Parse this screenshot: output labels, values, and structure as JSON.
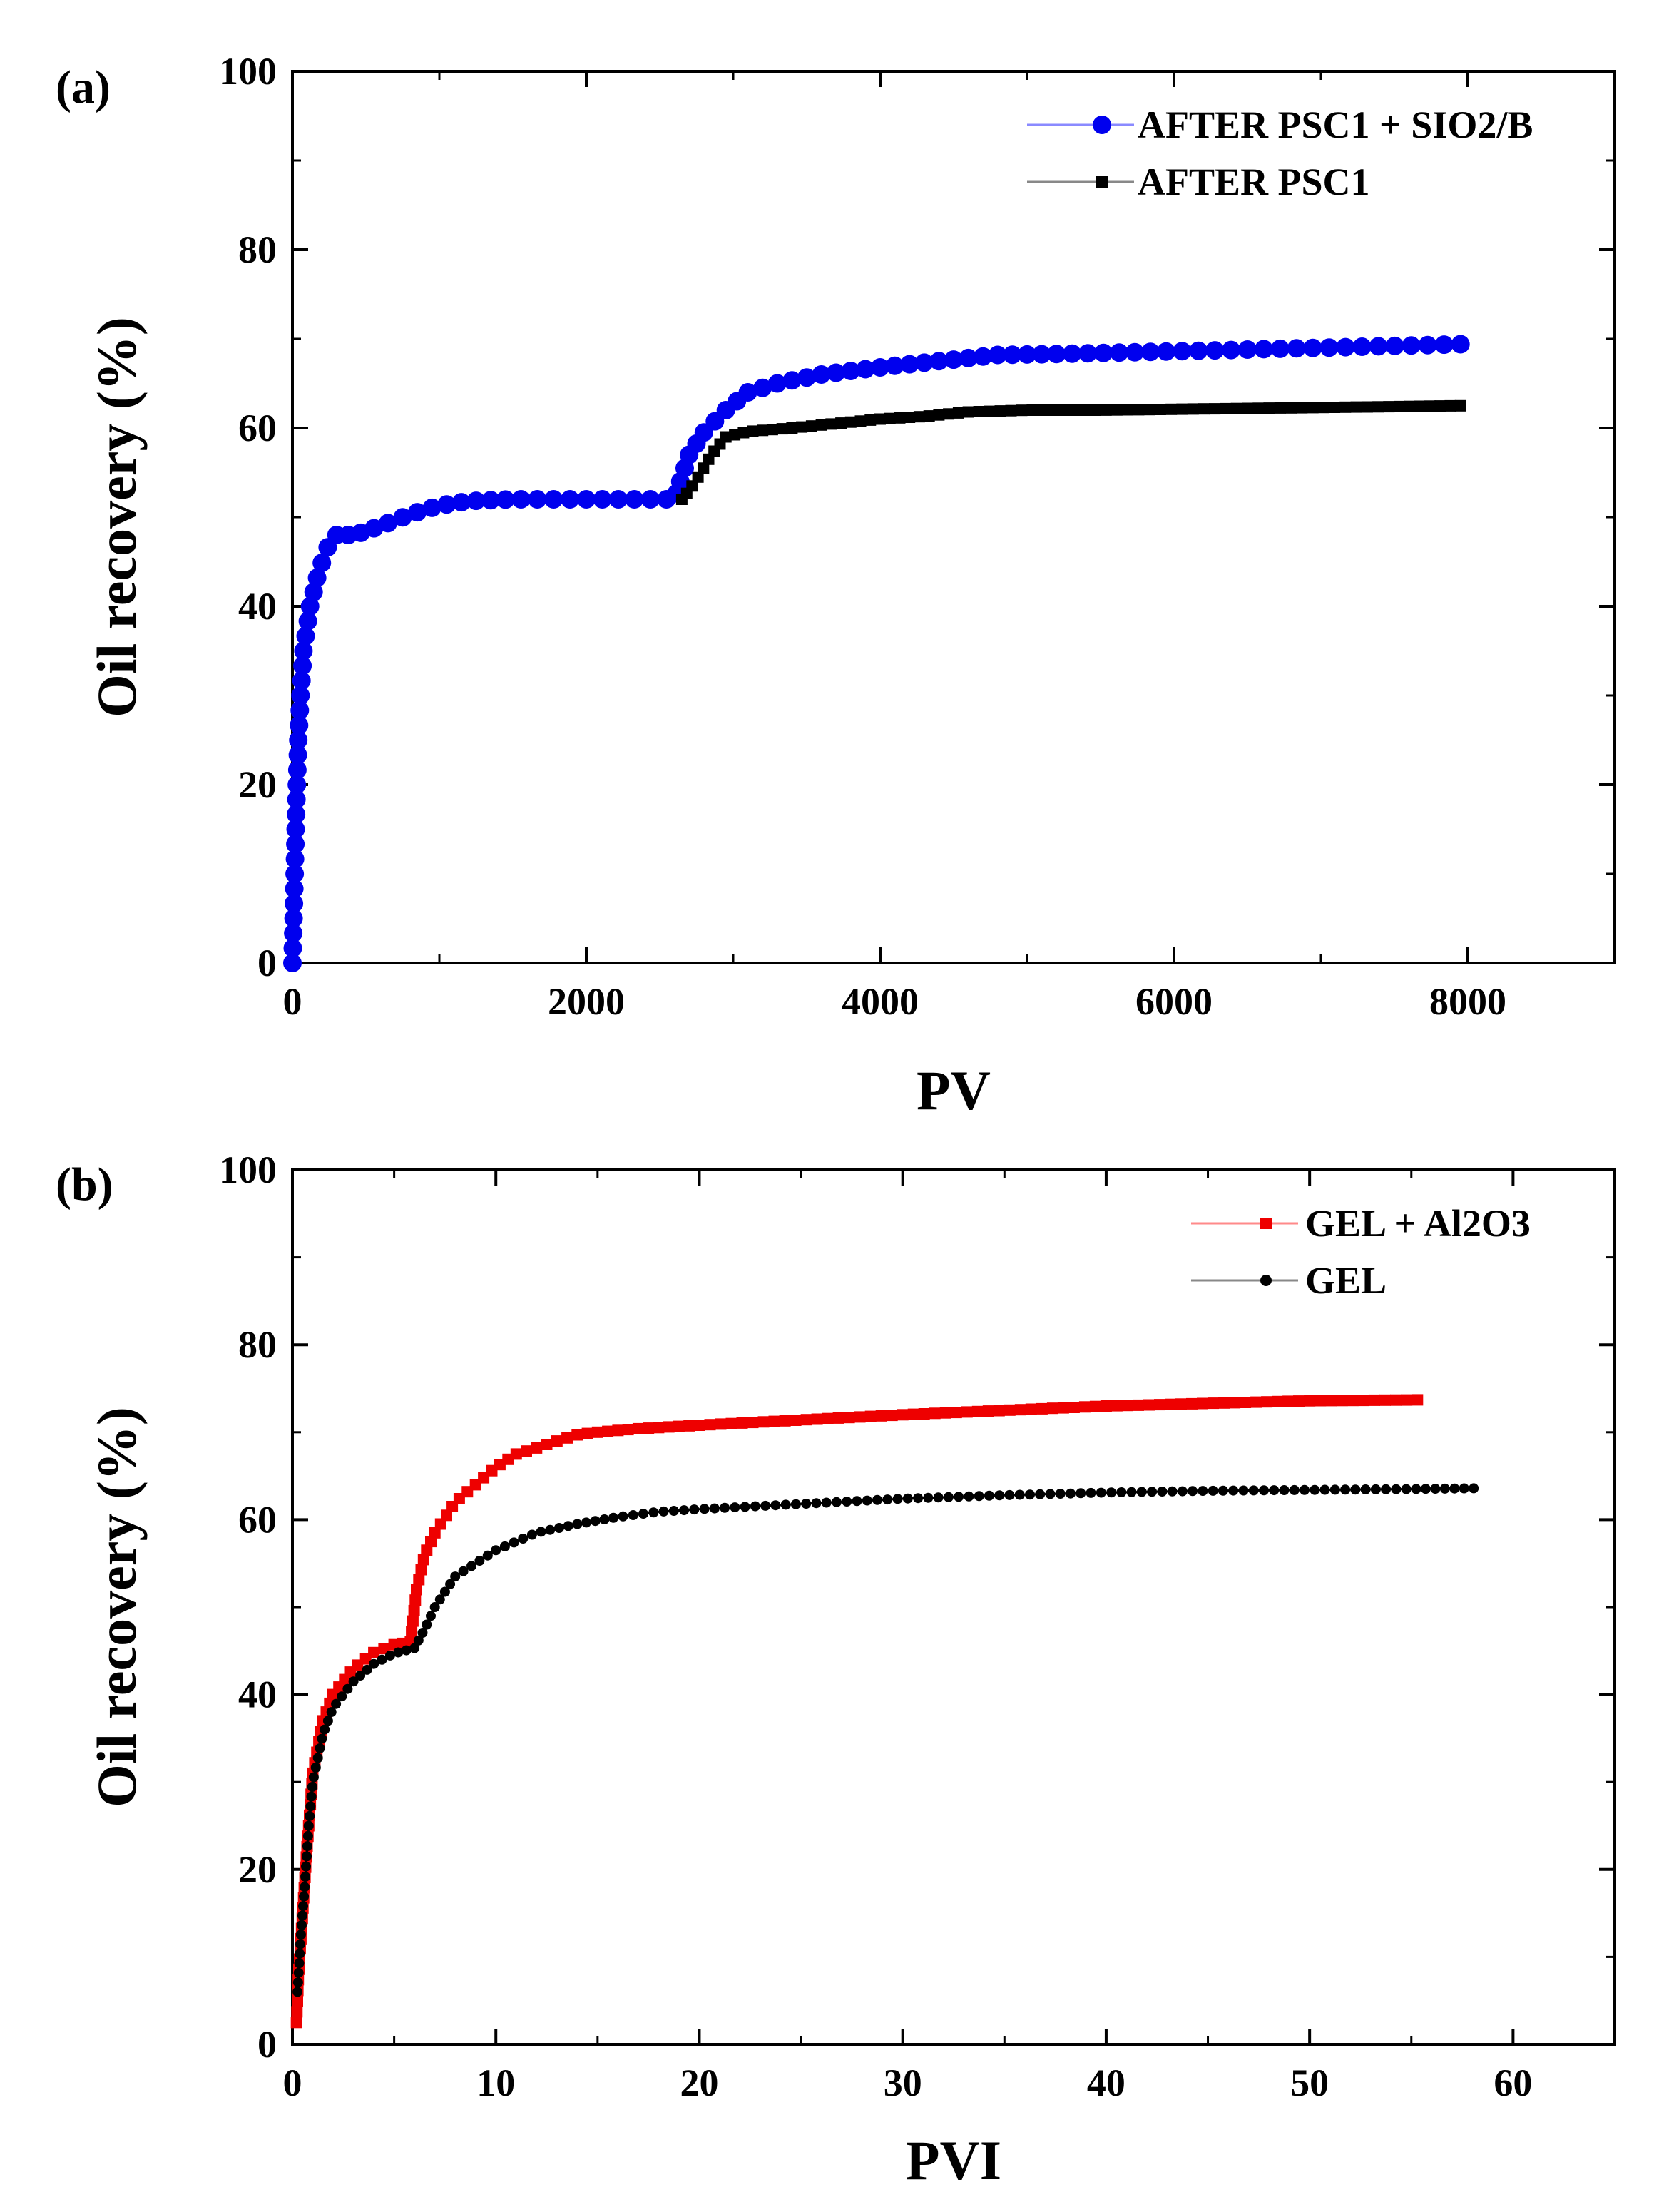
{
  "chart_data": [
    {
      "panel_label": "(a)",
      "type": "scatter",
      "xlabel": "PV",
      "ylabel": "Oil recovery (%)",
      "xlim": [
        0,
        9000
      ],
      "ylim": [
        0,
        100
      ],
      "x_ticks": [
        0,
        2000,
        4000,
        6000,
        8000
      ],
      "x_tick_labels": [
        "0",
        "2000",
        "4000",
        "6000",
        "8000"
      ],
      "x_minor_ticks": [
        1000,
        3000,
        5000,
        7000,
        9000
      ],
      "y_ticks": [
        0,
        20,
        40,
        60,
        80,
        100
      ],
      "y_tick_labels": [
        "0",
        "20",
        "40",
        "60",
        "80",
        "100"
      ],
      "y_minor_ticks": [
        10,
        30,
        50,
        70,
        90
      ],
      "grid": false,
      "legend_position": "top-right",
      "series": [
        {
          "name": "AFTER PSC1 + SIO2/B",
          "color": "#0000ee",
          "marker": "circle",
          "points": [
            [
              0,
              0
            ],
            [
              8,
              5
            ],
            [
              15,
              10
            ],
            [
              22,
              15
            ],
            [
              30,
              20
            ],
            [
              40,
              25
            ],
            [
              55,
              30
            ],
            [
              75,
              35
            ],
            [
              120,
              40
            ],
            [
              180,
              44
            ],
            [
              260,
              47.5
            ],
            [
              300,
              48
            ],
            [
              420,
              48
            ],
            [
              600,
              49
            ],
            [
              800,
              50.3
            ],
            [
              1000,
              51.3
            ],
            [
              1200,
              51.8
            ],
            [
              1500,
              52
            ],
            [
              2000,
              52
            ],
            [
              2600,
              52
            ],
            [
              2640,
              54
            ],
            [
              2700,
              57
            ],
            [
              2800,
              59.5
            ],
            [
              2950,
              62
            ],
            [
              3100,
              64
            ],
            [
              3300,
              65
            ],
            [
              3600,
              66
            ],
            [
              4000,
              66.8
            ],
            [
              4400,
              67.5
            ],
            [
              4800,
              68.2
            ],
            [
              5200,
              68.3
            ],
            [
              6000,
              68.6
            ],
            [
              7000,
              69
            ],
            [
              7950,
              69.4
            ]
          ]
        },
        {
          "name": "AFTER PSC1",
          "color": "#000000",
          "marker": "square",
          "points": [
            [
              2650,
              52
            ],
            [
              2700,
              53
            ],
            [
              2780,
              55
            ],
            [
              2850,
              57
            ],
            [
              2950,
              59
            ],
            [
              3100,
              59.6
            ],
            [
              3400,
              60
            ],
            [
              3700,
              60.5
            ],
            [
              4000,
              61
            ],
            [
              4300,
              61.3
            ],
            [
              4600,
              61.8
            ],
            [
              5000,
              62
            ],
            [
              5500,
              62
            ],
            [
              6500,
              62.2
            ],
            [
              7500,
              62.4
            ],
            [
              7950,
              62.5
            ]
          ]
        }
      ]
    },
    {
      "panel_label": "(b)",
      "type": "scatter",
      "xlabel": "PVI",
      "ylabel": "Oil recovery (%)",
      "xlim": [
        0,
        65
      ],
      "ylim": [
        0,
        100
      ],
      "x_ticks": [
        0,
        10,
        20,
        30,
        40,
        50,
        60
      ],
      "x_tick_labels": [
        "0",
        "10",
        "20",
        "30",
        "40",
        "50",
        "60"
      ],
      "x_minor_ticks": [
        5,
        15,
        25,
        35,
        45,
        55,
        65
      ],
      "y_ticks": [
        0,
        20,
        40,
        60,
        80,
        100
      ],
      "y_tick_labels": [
        "0",
        "20",
        "40",
        "60",
        "80",
        "100"
      ],
      "y_minor_ticks": [
        10,
        30,
        50,
        70,
        90
      ],
      "grid": false,
      "legend_position": "top-right",
      "series": [
        {
          "name": "GEL + Al2O3",
          "color": "#ee0000",
          "marker": "square",
          "points": [
            [
              0.2,
              2.5
            ],
            [
              0.3,
              8
            ],
            [
              0.5,
              15
            ],
            [
              0.7,
              22
            ],
            [
              1,
              31
            ],
            [
              1.5,
              37
            ],
            [
              2,
              40
            ],
            [
              3,
              43
            ],
            [
              4,
              44.8
            ],
            [
              5,
              45.7
            ],
            [
              5.8,
              46
            ],
            [
              6.1,
              52
            ],
            [
              6.5,
              56
            ],
            [
              7,
              58.5
            ],
            [
              8,
              62
            ],
            [
              9,
              64
            ],
            [
              10,
              66
            ],
            [
              11,
              67.5
            ],
            [
              12,
              68.2
            ],
            [
              13,
              69
            ],
            [
              14,
              69.7
            ],
            [
              15,
              70
            ],
            [
              17,
              70.4
            ],
            [
              20,
              70.8
            ],
            [
              25,
              71.4
            ],
            [
              30,
              72
            ],
            [
              35,
              72.5
            ],
            [
              40,
              73
            ],
            [
              45,
              73.3
            ],
            [
              50,
              73.6
            ],
            [
              55.3,
              73.7
            ]
          ]
        },
        {
          "name": "GEL",
          "color": "#000000",
          "marker": "circle",
          "points": [
            [
              0.25,
              6
            ],
            [
              0.4,
              12
            ],
            [
              0.6,
              18
            ],
            [
              0.8,
              25
            ],
            [
              1,
              30
            ],
            [
              1.5,
              35.5
            ],
            [
              2,
              38.5
            ],
            [
              3,
              41.5
            ],
            [
              4,
              43.5
            ],
            [
              5,
              44.7
            ],
            [
              6,
              45.3
            ],
            [
              6.5,
              47.5
            ],
            [
              7,
              50
            ],
            [
              8,
              53.5
            ],
            [
              10,
              56.5
            ],
            [
              12,
              58.5
            ],
            [
              14,
              59.5
            ],
            [
              16,
              60.3
            ],
            [
              18,
              60.9
            ],
            [
              20,
              61.2
            ],
            [
              25,
              61.8
            ],
            [
              30,
              62.4
            ],
            [
              35,
              62.8
            ],
            [
              40,
              63.1
            ],
            [
              45,
              63.3
            ],
            [
              50,
              63.4
            ],
            [
              55,
              63.5
            ],
            [
              58.3,
              63.6
            ]
          ]
        }
      ]
    }
  ]
}
